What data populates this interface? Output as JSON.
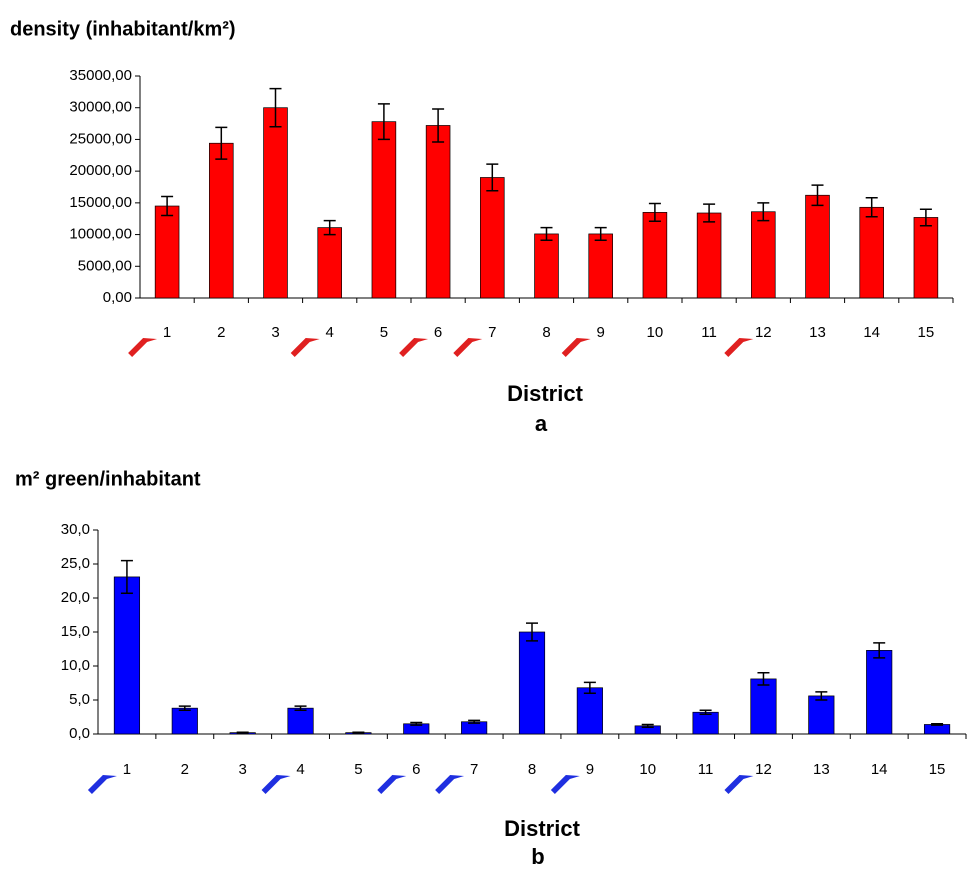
{
  "chart_data": [
    {
      "type": "bar",
      "title": "density (inhabitant/km²)",
      "xlabel": "District",
      "label": "a",
      "categories": [
        "1",
        "2",
        "3",
        "4",
        "5",
        "6",
        "7",
        "8",
        "9",
        "10",
        "11",
        "12",
        "13",
        "14",
        "15"
      ],
      "values": [
        14500,
        24400,
        30000,
        11100,
        27800,
        27200,
        19000,
        10100,
        10100,
        13500,
        13400,
        13600,
        16200,
        14300,
        12700
      ],
      "errors": [
        1500,
        2500,
        3000,
        1100,
        2800,
        2600,
        2100,
        1000,
        1000,
        1400,
        1400,
        1400,
        1600,
        1500,
        1300
      ],
      "color": "#ff0000",
      "marked_categories": [
        "1",
        "4",
        "6",
        "7",
        "9",
        "12"
      ],
      "arrow_color": "#e02020",
      "ylim": [
        0,
        35000
      ],
      "yticks": [
        {
          "value": 0,
          "label": "0,00"
        },
        {
          "value": 5000,
          "label": "5000,00"
        },
        {
          "value": 10000,
          "label": "10000,00"
        },
        {
          "value": 15000,
          "label": "15000,00"
        },
        {
          "value": 20000,
          "label": "20000,00"
        },
        {
          "value": 25000,
          "label": "25000,00"
        },
        {
          "value": 30000,
          "label": "30000,00"
        },
        {
          "value": 35000,
          "label": "35000,00"
        }
      ]
    },
    {
      "type": "bar",
      "title": "m² green/inhabitant",
      "xlabel": "District",
      "label": "b",
      "categories": [
        "1",
        "2",
        "3",
        "4",
        "5",
        "6",
        "7",
        "8",
        "9",
        "10",
        "11",
        "12",
        "13",
        "14",
        "15"
      ],
      "values": [
        23.1,
        3.8,
        0.2,
        3.8,
        0.2,
        1.5,
        1.8,
        15.0,
        6.8,
        1.2,
        3.2,
        8.1,
        5.6,
        12.3,
        1.4
      ],
      "errors": [
        2.4,
        0.3,
        0.05,
        0.3,
        0.05,
        0.2,
        0.2,
        1.3,
        0.8,
        0.2,
        0.3,
        0.9,
        0.6,
        1.1,
        0.1
      ],
      "color": "#0000ff",
      "marked_categories": [
        "1",
        "4",
        "6",
        "7",
        "9",
        "12"
      ],
      "arrow_color": "#1f2fe0",
      "ylim": [
        0,
        30
      ],
      "yticks": [
        {
          "value": 0,
          "label": "0,0"
        },
        {
          "value": 5,
          "label": "5,0"
        },
        {
          "value": 10,
          "label": "10,0"
        },
        {
          "value": 15,
          "label": "15,0"
        },
        {
          "value": 20,
          "label": "20,0"
        },
        {
          "value": 25,
          "label": "25,0"
        },
        {
          "value": 30,
          "label": "30,0"
        }
      ]
    }
  ]
}
